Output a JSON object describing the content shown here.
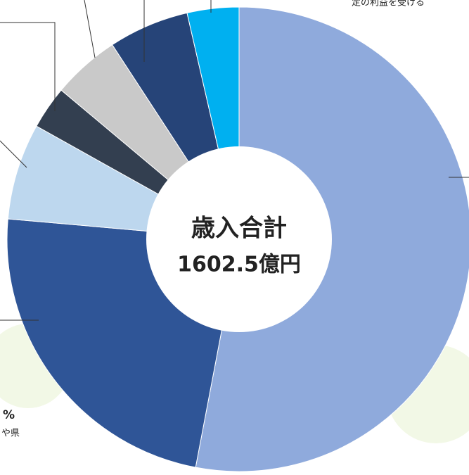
{
  "chart_data": {
    "type": "donut",
    "center_label": "歳入合計",
    "center_value_label": "1602.5億円",
    "categories": [
      null,
      null,
      null,
      null,
      null,
      null,
      null
    ],
    "values": [
      53.0,
      23.4,
      6.7,
      3.0,
      4.7,
      5.6,
      3.6
    ],
    "colors": [
      "#8faadc",
      "#2f5597",
      "#bdd7ee",
      "#333f50",
      "#c9c9c9",
      "#264478",
      "#00b0f0"
    ],
    "annotations": [
      "定の利益を受ける",
      "%",
      "や県"
    ]
  }
}
